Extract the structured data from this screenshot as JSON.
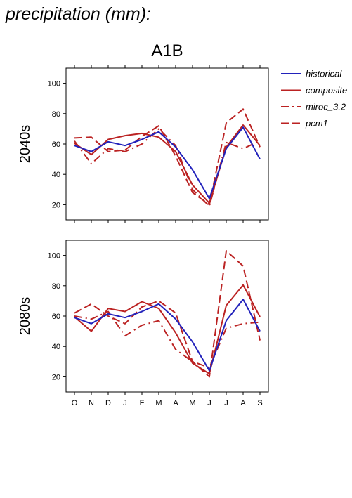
{
  "figure_title": "precipitation (mm):",
  "chart_data": {
    "type": "line",
    "title": "A1B",
    "ylim": [
      10,
      110
    ],
    "y_ticks": [
      20,
      40,
      60,
      80,
      100
    ],
    "categories": [
      "O",
      "N",
      "D",
      "J",
      "F",
      "M",
      "A",
      "M",
      "J",
      "J",
      "A",
      "S"
    ],
    "legend": {
      "placement": "right",
      "entries": [
        {
          "name": "historical",
          "color": "#2222bb",
          "style": "solid"
        },
        {
          "name": "composite",
          "color": "#bb2222",
          "style": "solid"
        },
        {
          "name": "miroc_3.2",
          "color": "#bb2222",
          "style": "dashdot"
        },
        {
          "name": "pcm1",
          "color": "#bb2222",
          "style": "dashed"
        }
      ]
    },
    "panels": [
      {
        "label": "2040s",
        "series": [
          {
            "name": "historical",
            "values": [
              59,
              55,
              61.5,
              59,
              63,
              68,
              58,
              43,
              24,
              57,
              71,
              50
            ]
          },
          {
            "name": "composite",
            "values": [
              60.5,
              53,
              63,
              65.5,
              67,
              64.5,
              55,
              33,
              21,
              58,
              72.5,
              59
            ]
          },
          {
            "name": "miroc_3.2",
            "values": [
              62,
              47,
              57,
              55,
              60,
              70,
              59,
              30,
              19,
              61,
              57,
              62
            ]
          },
          {
            "name": "pcm1",
            "values": [
              64,
              64.5,
              55,
              56,
              65,
              72,
              52,
              28,
              20,
              74,
              83,
              58
            ]
          }
        ]
      },
      {
        "label": "2080s",
        "series": [
          {
            "name": "historical",
            "values": [
              59,
              55,
              61.5,
              59,
              63,
              68,
              58,
              43,
              24,
              57,
              71,
              50
            ]
          },
          {
            "name": "composite",
            "values": [
              59.5,
              50,
              65,
              63,
              69.5,
              65,
              49,
              29,
              22,
              67,
              80.5,
              59.5
            ]
          },
          {
            "name": "miroc_3.2",
            "values": [
              60,
              58,
              63,
              47,
              54,
              57,
              38,
              30,
              26,
              52,
              55,
              56
            ]
          },
          {
            "name": "pcm1",
            "values": [
              62,
              68,
              60,
              55,
              66,
              70,
              62,
              30,
              20,
              103,
              93,
              44
            ]
          }
        ]
      }
    ]
  }
}
